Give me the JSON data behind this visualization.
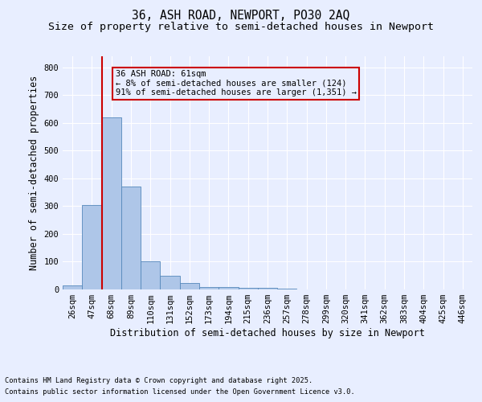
{
  "title1": "36, ASH ROAD, NEWPORT, PO30 2AQ",
  "title2": "Size of property relative to semi-detached houses in Newport",
  "bar_labels": [
    "26sqm",
    "47sqm",
    "68sqm",
    "89sqm",
    "110sqm",
    "131sqm",
    "152sqm",
    "173sqm",
    "194sqm",
    "215sqm",
    "236sqm",
    "257sqm",
    "278sqm",
    "299sqm",
    "320sqm",
    "341sqm",
    "362sqm",
    "383sqm",
    "404sqm",
    "425sqm",
    "446sqm"
  ],
  "bar_values": [
    15,
    305,
    620,
    370,
    100,
    50,
    23,
    10,
    8,
    7,
    5,
    2,
    1,
    0,
    0,
    0,
    0,
    0,
    0,
    0,
    0
  ],
  "bar_color": "#aec6e8",
  "bar_edge_color": "#5588bb",
  "vline_color": "#cc0000",
  "ylabel": "Number of semi-detached properties",
  "xlabel": "Distribution of semi-detached houses by size in Newport",
  "ylim": [
    0,
    840
  ],
  "yticks": [
    0,
    100,
    200,
    300,
    400,
    500,
    600,
    700,
    800
  ],
  "annotation_title": "36 ASH ROAD: 61sqm",
  "annotation_line1": "← 8% of semi-detached houses are smaller (124)",
  "annotation_line2": "91% of semi-detached houses are larger (1,351) →",
  "annotation_box_color": "#cc0000",
  "footnote1": "Contains HM Land Registry data © Crown copyright and database right 2025.",
  "footnote2": "Contains public sector information licensed under the Open Government Licence v3.0.",
  "bg_color": "#e8eeff",
  "grid_color": "#ffffff",
  "title_fontsize": 10.5,
  "subtitle_fontsize": 9.5,
  "axis_label_fontsize": 8.5,
  "tick_fontsize": 7.5,
  "footnote_fontsize": 6.2
}
